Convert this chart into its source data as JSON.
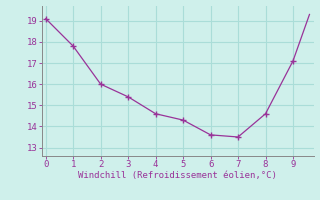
{
  "x": [
    0,
    1,
    2,
    3,
    4,
    5,
    6,
    7,
    8,
    9,
    9.6
  ],
  "y": [
    19.1,
    17.8,
    16.0,
    15.4,
    14.6,
    14.3,
    13.6,
    13.5,
    14.6,
    17.1,
    19.3
  ],
  "marker_x": [
    0,
    1,
    2,
    3,
    4,
    5,
    6,
    7,
    8,
    9
  ],
  "marker_y": [
    19.1,
    17.8,
    16.0,
    15.4,
    14.6,
    14.3,
    13.6,
    13.5,
    14.6,
    17.1
  ],
  "xlim": [
    -0.15,
    9.75
  ],
  "ylim": [
    12.6,
    19.7
  ],
  "xticks": [
    0,
    1,
    2,
    3,
    4,
    5,
    6,
    7,
    8,
    9
  ],
  "yticks": [
    13,
    14,
    15,
    16,
    17,
    18,
    19
  ],
  "xlabel": "Windchill (Refroidissement éolien,°C)",
  "line_color": "#993399",
  "bg_color": "#cff0eb",
  "grid_color": "#aaddd8",
  "font_color": "#993399",
  "spine_color": "#888888"
}
